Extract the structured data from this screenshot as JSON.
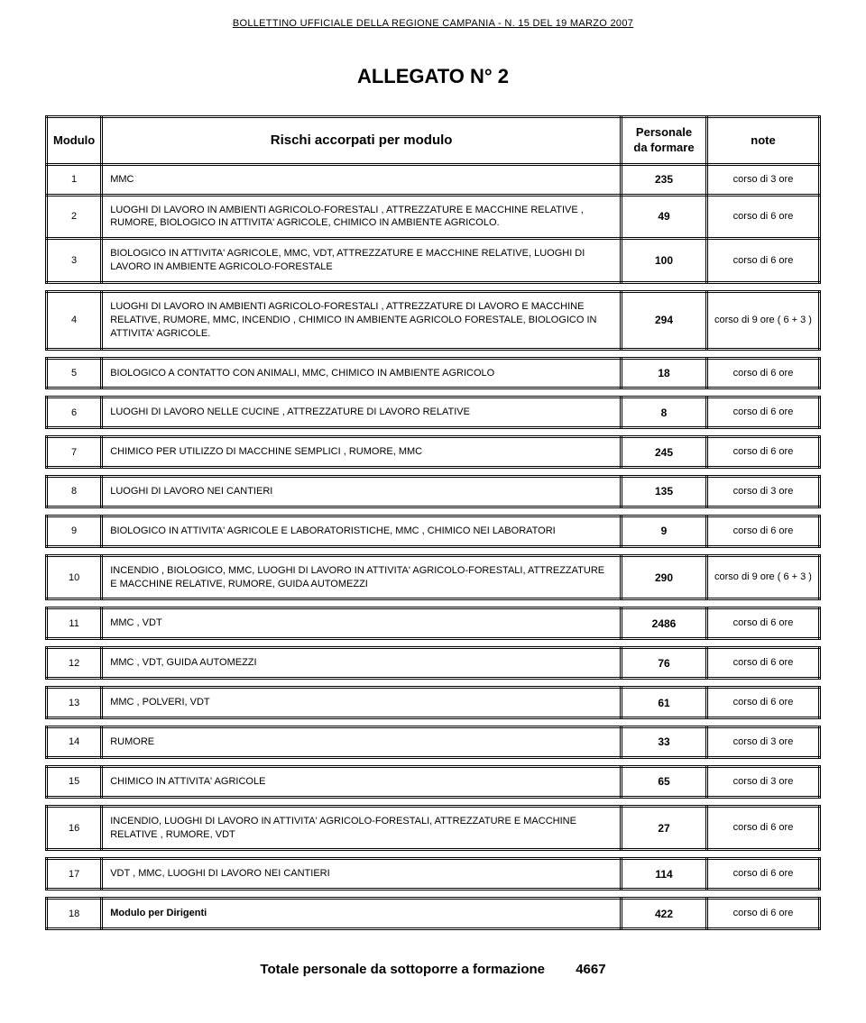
{
  "header": "BOLLETTINO UFFICIALE DELLA REGIONE CAMPANIA - N. 15 DEL 19 MARZO 2007",
  "title": "ALLEGATO N° 2",
  "columns": {
    "modulo": "Modulo",
    "rischi": "Rischi accorpati per modulo",
    "personale_l1": "Personale",
    "personale_l2": "da formare",
    "note": "note"
  },
  "rows": [
    {
      "n": "1",
      "desc": "MMC",
      "pers": "235",
      "note": "corso di 3 ore",
      "spacer_after": false
    },
    {
      "n": "2",
      "desc": "LUOGHI DI LAVORO IN AMBIENTI AGRICOLO-FORESTALI , ATTREZZATURE E MACCHINE RELATIVE , RUMORE, BIOLOGICO IN ATTIVITA' AGRICOLE, CHIMICO IN AMBIENTE AGRICOLO.",
      "pers": "49",
      "note": "corso di 6 ore",
      "spacer_after": false
    },
    {
      "n": "3",
      "desc": "BIOLOGICO IN ATTIVITA' AGRICOLE,  MMC,  VDT, ATTREZZATURE E MACCHINE  RELATIVE, LUOGHI DI LAVORO IN AMBIENTE AGRICOLO-FORESTALE",
      "pers": "100",
      "note": "corso di 6 ore",
      "spacer_after": true
    },
    {
      "n": "4",
      "desc": "LUOGHI DI LAVORO IN AMBIENTI AGRICOLO-FORESTALI , ATTREZZATURE DI LAVORO E MACCHINE RELATIVE, RUMORE, MMC, INCENDIO ,  CHIMICO IN AMBIENTE AGRICOLO FORESTALE, BIOLOGICO IN ATTIVITA' AGRICOLE.",
      "pers": "294",
      "note": "corso di 9 ore ( 6 + 3 )",
      "spacer_after": true
    },
    {
      "n": "5",
      "desc": "BIOLOGICO A CONTATTO CON ANIMALI, MMC,  CHIMICO IN AMBIENTE AGRICOLO",
      "pers": "18",
      "note": "corso di 6 ore",
      "spacer_after": true
    },
    {
      "n": "6",
      "desc": "LUOGHI DI LAVORO NELLE CUCINE , ATTREZZATURE DI LAVORO RELATIVE",
      "pers": "8",
      "note": "corso di 6 ore",
      "spacer_after": true
    },
    {
      "n": "7",
      "desc": "CHIMICO PER UTILIZZO DI MACCHINE SEMPLICI , RUMORE,   MMC",
      "pers": "245",
      "note": "corso di 6 ore",
      "spacer_after": true
    },
    {
      "n": "8",
      "desc": "LUOGHI DI LAVORO NEI CANTIERI",
      "pers": "135",
      "note": "corso di 3 ore",
      "spacer_after": true
    },
    {
      "n": "9",
      "desc": "BIOLOGICO IN ATTIVITA' AGRICOLE E LABORATORISTICHE, MMC ,  CHIMICO NEI LABORATORI",
      "pers": "9",
      "note": "corso di 6 ore",
      "spacer_after": true
    },
    {
      "n": "10",
      "desc": "INCENDIO , BIOLOGICO,  MMC,    LUOGHI DI LAVORO IN ATTIVITA' AGRICOLO-FORESTALI, ATTREZZATURE E MACCHINE RELATIVE, RUMORE,  GUIDA AUTOMEZZI",
      "pers": "290",
      "note": "corso di 9 ore ( 6 + 3 )",
      "spacer_after": true
    },
    {
      "n": "11",
      "desc": "MMC , VDT",
      "pers": "2486",
      "note": "corso di 6 ore",
      "spacer_after": true
    },
    {
      "n": "12",
      "desc": "MMC , VDT, GUIDA AUTOMEZZI",
      "pers": "76",
      "note": "corso di 6 ore",
      "spacer_after": true
    },
    {
      "n": "13",
      "desc": "MMC , POLVERI, VDT",
      "pers": "61",
      "note": "corso di 6 ore",
      "spacer_after": true
    },
    {
      "n": "14",
      "desc": "RUMORE",
      "pers": "33",
      "note": "corso di 3 ore",
      "spacer_after": true
    },
    {
      "n": "15",
      "desc": "CHIMICO  IN ATTIVITA' AGRICOLE",
      "pers": "65",
      "note": "corso di 3 ore",
      "spacer_after": true
    },
    {
      "n": "16",
      "desc": "INCENDIO,   LUOGHI DI LAVORO IN ATTIVITA' AGRICOLO-FORESTALI,    ATTREZZATURE E MACCHINE RELATIVE ,  RUMORE, VDT",
      "pers": "27",
      "note": "corso di 6 ore",
      "spacer_after": true
    },
    {
      "n": "17",
      "desc": "VDT , MMC, LUOGHI DI LAVORO NEI CANTIERI",
      "pers": "114",
      "note": "corso di 6 ore",
      "spacer_after": true
    },
    {
      "n": "18",
      "desc": "Modulo per Dirigenti",
      "pers": "422",
      "note": "corso di 6 ore",
      "bold": true,
      "spacer_after": false
    }
  ],
  "totale_label": "Totale personale da sottoporre a formazione",
  "totale_value": "4667",
  "style": {
    "page_bg": "#ffffff",
    "text_color": "#000000",
    "border_color": "#000000",
    "header_fontsize": 11,
    "title_fontsize": 22,
    "body_fontsize": 11,
    "totale_fontsize": 15
  }
}
